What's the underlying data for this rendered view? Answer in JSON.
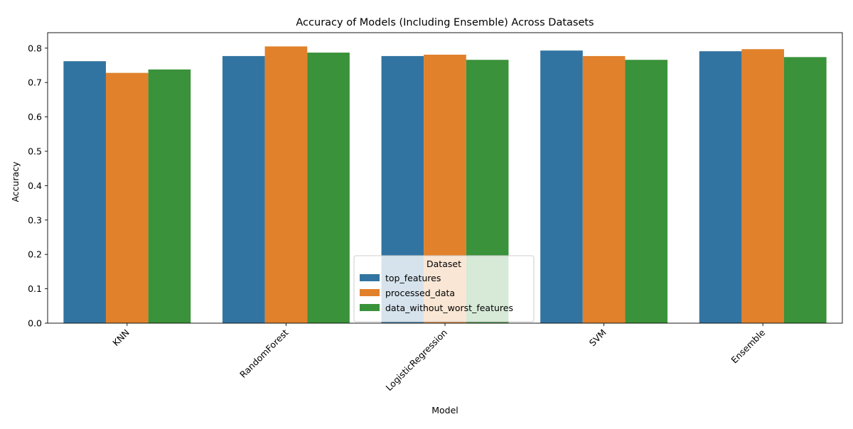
{
  "chart_data": {
    "type": "bar",
    "title": "Accuracy of Models (Including Ensemble) Across Datasets",
    "xlabel": "Model",
    "ylabel": "Accuracy",
    "categories": [
      "KNN",
      "RandomForest",
      "LogisticRegression",
      "SVM",
      "Ensemble"
    ],
    "series": [
      {
        "name": "top_features",
        "color": "#3274a1",
        "values": [
          0.762,
          0.777,
          0.777,
          0.793,
          0.791
        ]
      },
      {
        "name": "processed_data",
        "color": "#e1812c",
        "values": [
          0.728,
          0.805,
          0.781,
          0.777,
          0.797
        ]
      },
      {
        "name": "data_without_worst_features",
        "color": "#3a923a",
        "values": [
          0.738,
          0.787,
          0.766,
          0.766,
          0.774
        ]
      }
    ],
    "yticks": [
      "0.0",
      "0.1",
      "0.2",
      "0.3",
      "0.4",
      "0.5",
      "0.6",
      "0.7",
      "0.8"
    ],
    "ylim": [
      0,
      0.845
    ],
    "legend": {
      "title": "Dataset",
      "position": "lower center"
    },
    "grid": false
  }
}
